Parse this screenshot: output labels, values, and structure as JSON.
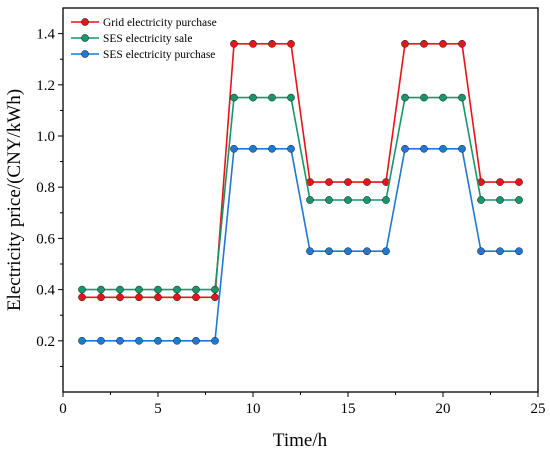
{
  "chart_data": {
    "type": "line",
    "xlabel": "Time/h",
    "ylabel": "Electricity price/(CNY/kWh)",
    "xlim": [
      0,
      25
    ],
    "ylim": [
      0,
      1.5
    ],
    "xticks": [
      0,
      5,
      10,
      15,
      20,
      25
    ],
    "yticks": [
      0.2,
      0.4,
      0.6,
      0.8,
      1.0,
      1.2,
      1.4
    ],
    "ytick_labels": [
      "0.2",
      "0.4",
      "0.6",
      "0.8",
      "1.0",
      "1.2",
      "1.4"
    ],
    "grid": false,
    "legend_position": "top-left",
    "x": [
      1,
      2,
      3,
      4,
      5,
      6,
      7,
      8,
      9,
      10,
      11,
      12,
      13,
      14,
      15,
      16,
      17,
      18,
      19,
      20,
      21,
      22,
      23,
      24
    ],
    "series": [
      {
        "name": "Grid electricity purchase",
        "color": "#e8141a",
        "values": [
          0.37,
          0.37,
          0.37,
          0.37,
          0.37,
          0.37,
          0.37,
          0.37,
          1.36,
          1.36,
          1.36,
          1.36,
          0.82,
          0.82,
          0.82,
          0.82,
          0.82,
          1.36,
          1.36,
          1.36,
          1.36,
          0.82,
          0.82,
          0.82
        ]
      },
      {
        "name": "SES electricity sale",
        "color": "#17966a",
        "values": [
          0.4,
          0.4,
          0.4,
          0.4,
          0.4,
          0.4,
          0.4,
          0.4,
          1.15,
          1.15,
          1.15,
          1.15,
          0.75,
          0.75,
          0.75,
          0.75,
          0.75,
          1.15,
          1.15,
          1.15,
          1.15,
          0.75,
          0.75,
          0.75
        ]
      },
      {
        "name": "SES electricity purchase",
        "color": "#1f78d1",
        "values": [
          0.2,
          0.2,
          0.2,
          0.2,
          0.2,
          0.2,
          0.2,
          0.2,
          0.95,
          0.95,
          0.95,
          0.95,
          0.55,
          0.55,
          0.55,
          0.55,
          0.55,
          0.95,
          0.95,
          0.95,
          0.95,
          0.55,
          0.55,
          0.55
        ]
      }
    ]
  }
}
